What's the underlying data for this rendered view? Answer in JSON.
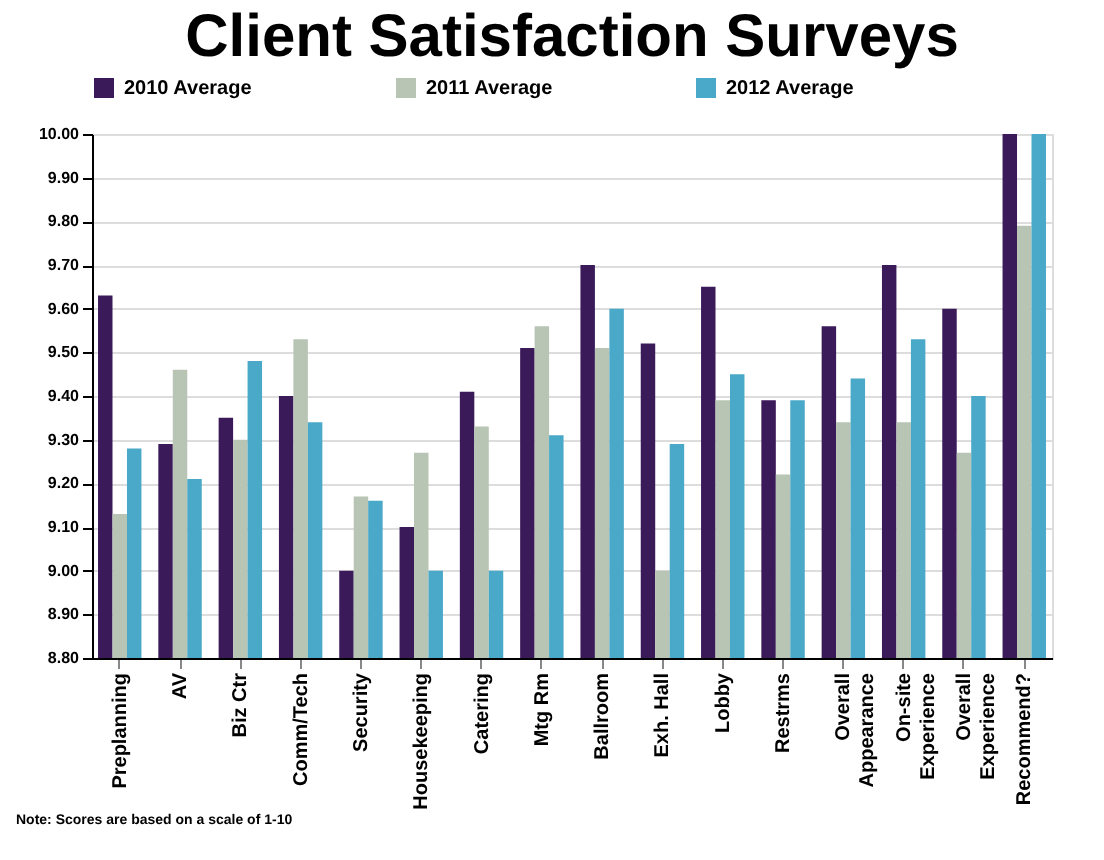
{
  "chart_data": {
    "type": "bar",
    "title": "Client Satisfaction Surveys",
    "categories": [
      "Preplanning",
      "AV",
      "Biz Ctr",
      "Comm/Tech",
      "Security",
      "Housekeeping",
      "Catering",
      "Mtg Rm",
      "Ballroom",
      "Exh. Hall",
      "Lobby",
      "Restrms",
      "Overall\nAppearance",
      "On-site\nExperience",
      "Overall\nExperience",
      "Recommend?"
    ],
    "series": [
      {
        "name": "2010 Average",
        "color": "#3b1a5a",
        "values": [
          9.63,
          9.29,
          9.35,
          9.4,
          9.0,
          9.1,
          9.41,
          9.51,
          9.7,
          9.52,
          9.65,
          9.39,
          9.56,
          9.7,
          9.6,
          10.0
        ]
      },
      {
        "name": "2011 Average",
        "color": "#b8c4b4",
        "values": [
          9.13,
          9.46,
          9.3,
          9.53,
          9.17,
          9.27,
          9.33,
          9.56,
          9.51,
          9.0,
          9.39,
          9.22,
          9.34,
          9.34,
          9.27,
          9.79
        ]
      },
      {
        "name": "2012 Average",
        "color": "#4aa8c8",
        "values": [
          9.28,
          9.21,
          9.48,
          9.34,
          9.16,
          9.0,
          9.0,
          9.31,
          9.6,
          9.29,
          9.45,
          9.39,
          9.44,
          9.53,
          9.4,
          10.0
        ]
      }
    ],
    "ylim": [
      8.8,
      10.0
    ],
    "yticks": [
      {
        "value": 8.8,
        "label": "8.80"
      },
      {
        "value": 8.9,
        "label": "8.90"
      },
      {
        "value": 9.0,
        "label": "9.00"
      },
      {
        "value": 9.1,
        "label": "9.10"
      },
      {
        "value": 9.2,
        "label": "9.20"
      },
      {
        "value": 9.3,
        "label": "9.30"
      },
      {
        "value": 9.4,
        "label": "9.40"
      },
      {
        "value": 9.5,
        "label": "9.50"
      },
      {
        "value": 9.6,
        "label": "9.60"
      },
      {
        "value": 9.7,
        "label": "9.70"
      },
      {
        "value": 9.8,
        "label": "9.80"
      },
      {
        "value": 9.9,
        "label": "9.90"
      },
      {
        "value": 10.0,
        "label": "10.00"
      }
    ],
    "grid": "y",
    "legend": "top",
    "annotations": [
      "Note: Scores are based on a scale of 1-10"
    ]
  }
}
